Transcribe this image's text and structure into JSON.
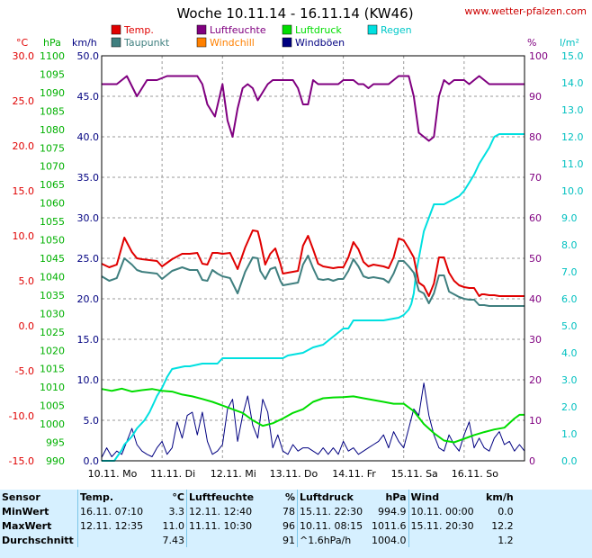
{
  "title": "Woche 10.11.14 - 16.11.14 (KW46)",
  "source": "www.wetter-pfalzen.com",
  "legend": [
    {
      "label": "Temp.",
      "color": "#e00000"
    },
    {
      "label": "Taupunkt",
      "color": "#3f7f7f"
    },
    {
      "label": "Luftfeuchte",
      "color": "#800080"
    },
    {
      "label": "Windchill",
      "color": "#ff8000"
    },
    {
      "label": "Luftdruck",
      "color": "#00dd00"
    },
    {
      "label": "Windböen",
      "color": "#000080"
    },
    {
      "label": "Regen",
      "color": "#00e0e0"
    }
  ],
  "axes": {
    "temp": {
      "unit": "°C",
      "ticks": [
        "30.0",
        "25.0",
        "20.0",
        "15.0",
        "10.0",
        "5.0",
        "0.0",
        "-5.0",
        "-10.0",
        "-15.0"
      ],
      "color": "#e00000"
    },
    "pressure": {
      "unit": "hPa",
      "ticks": [
        "1100",
        "1095",
        "1090",
        "1085",
        "1080",
        "1075",
        "1070",
        "1065",
        "1060",
        "1055",
        "1050",
        "1045",
        "1040",
        "1035",
        "1030",
        "1025",
        "1020",
        "1015",
        "1010",
        "1005",
        "1000",
        "995",
        "990"
      ],
      "color": "#00b000"
    },
    "wind": {
      "unit": "km/h",
      "ticks": [
        "50.0",
        "45.0",
        "40.0",
        "35.0",
        "30.0",
        "25.0",
        "20.0",
        "15.0",
        "10.0",
        "5.0",
        "0.0"
      ],
      "color": "#000080"
    },
    "humidity": {
      "unit": "%",
      "ticks": [
        "100",
        "90",
        "80",
        "70",
        "60",
        "50",
        "40",
        "30",
        "20",
        "10",
        "0"
      ],
      "color": "#800080"
    },
    "rain": {
      "unit": "l/m²",
      "ticks": [
        "15.0",
        "14.0",
        "13.0",
        "12.0",
        "11.0",
        "10.0",
        "9.0",
        "8.0",
        "7.0",
        "6.0",
        "5.0",
        "4.0",
        "3.0",
        "2.0",
        "1.0",
        "0.0"
      ],
      "color": "#00c0c0"
    },
    "days": [
      "10.11. Mo",
      "11.11. Di",
      "12.11. Mi",
      "13.11. Do",
      "14.11. Fr",
      "15.11. Sa",
      "16.11. So"
    ]
  },
  "chart_data": {
    "type": "line",
    "title": "Woche 10.11.14 - 16.11.14 (KW46)",
    "x_unit": "hours since 10.11. 00:00",
    "xlim": [
      0,
      168
    ],
    "series": [
      {
        "name": "Temp.",
        "axis": "temp",
        "ylim": [
          -15,
          30
        ],
        "color": "#e00000",
        "x": [
          0,
          3,
          6,
          9,
          12,
          14,
          16,
          19,
          22,
          24,
          28,
          32,
          35,
          38,
          40,
          42,
          44,
          46,
          48,
          51,
          54,
          57,
          60,
          62,
          63,
          65,
          67,
          69,
          71,
          72,
          74,
          76,
          78,
          80,
          82,
          84,
          86,
          88,
          90,
          92,
          94,
          96,
          98,
          100,
          102,
          104,
          106,
          108,
          110,
          112,
          114,
          116,
          118,
          120,
          122,
          124,
          126,
          128,
          130,
          132,
          134,
          136,
          138,
          140,
          142,
          144,
          146,
          148,
          150,
          151,
          152,
          154,
          156,
          158,
          160,
          162,
          164,
          166,
          168
        ],
        "y": [
          6.9,
          6.5,
          6.8,
          9.8,
          8.2,
          7.5,
          7.4,
          7.3,
          7.2,
          6.6,
          7.4,
          8.0,
          8.0,
          8.1,
          6.9,
          6.8,
          8.1,
          8.1,
          8.0,
          8.1,
          6.3,
          8.7,
          10.6,
          10.5,
          9.4,
          6.8,
          8.0,
          8.6,
          6.9,
          5.8,
          5.9,
          6.0,
          6.1,
          8.9,
          10.0,
          8.5,
          6.9,
          6.6,
          6.5,
          6.4,
          6.5,
          6.5,
          7.6,
          9.3,
          8.5,
          7.1,
          6.6,
          6.8,
          6.7,
          6.6,
          6.4,
          7.6,
          9.7,
          9.5,
          8.6,
          7.6,
          4.8,
          4.4,
          3.3,
          4.7,
          7.6,
          7.6,
          5.9,
          5.0,
          4.5,
          4.3,
          4.2,
          4.2,
          3.3,
          3.5,
          3.5,
          3.4,
          3.4,
          3.3,
          3.3,
          3.3,
          3.3,
          3.3,
          3.3
        ]
      },
      {
        "name": "Taupunkt",
        "axis": "temp",
        "ylim": [
          -15,
          30
        ],
        "color": "#3f7f7f",
        "x": [
          0,
          3,
          6,
          9,
          12,
          14,
          16,
          19,
          22,
          24,
          28,
          32,
          35,
          38,
          40,
          42,
          44,
          46,
          48,
          51,
          54,
          57,
          60,
          62,
          63,
          65,
          67,
          69,
          71,
          72,
          74,
          76,
          78,
          80,
          82,
          84,
          86,
          88,
          90,
          92,
          94,
          96,
          98,
          100,
          102,
          104,
          106,
          108,
          110,
          112,
          114,
          116,
          118,
          120,
          122,
          124,
          126,
          128,
          130,
          132,
          134,
          136,
          138,
          140,
          142,
          144,
          146,
          148,
          150,
          151,
          152,
          154,
          156,
          158,
          160,
          162,
          164,
          166,
          168
        ],
        "y": [
          5.5,
          5.0,
          5.3,
          7.5,
          6.8,
          6.2,
          6.0,
          5.9,
          5.8,
          5.2,
          6.1,
          6.5,
          6.2,
          6.2,
          5.1,
          5.0,
          6.2,
          5.8,
          5.5,
          5.3,
          3.6,
          6.0,
          7.6,
          7.5,
          6.1,
          5.2,
          6.3,
          6.5,
          5.0,
          4.5,
          4.6,
          4.7,
          4.8,
          6.8,
          7.8,
          6.4,
          5.2,
          5.1,
          5.2,
          5.0,
          5.2,
          5.2,
          6.1,
          7.4,
          6.6,
          5.5,
          5.3,
          5.4,
          5.3,
          5.2,
          4.8,
          5.8,
          7.2,
          7.2,
          6.6,
          5.9,
          3.9,
          3.6,
          2.5,
          3.6,
          5.6,
          5.6,
          3.8,
          3.5,
          3.2,
          3.0,
          2.9,
          2.9,
          2.3,
          2.3,
          2.3,
          2.2,
          2.2,
          2.2,
          2.2,
          2.2,
          2.2,
          2.2,
          2.2
        ]
      },
      {
        "name": "Luftfeuchte",
        "axis": "humidity",
        "ylim": [
          0,
          100
        ],
        "color": "#800080",
        "x": [
          0,
          6,
          10,
          14,
          18,
          22,
          26,
          30,
          34,
          38,
          40,
          42,
          45,
          48,
          50,
          52,
          54,
          56,
          58,
          60,
          62,
          64,
          66,
          68,
          70,
          72,
          74,
          76,
          78,
          80,
          82,
          84,
          86,
          88,
          90,
          92,
          94,
          96,
          98,
          100,
          102,
          104,
          106,
          108,
          110,
          112,
          114,
          116,
          118,
          120,
          122,
          124,
          126,
          128,
          130,
          132,
          134,
          136,
          138,
          140,
          142,
          144,
          146,
          148,
          150,
          152,
          154,
          156,
          158,
          160,
          162,
          164,
          166,
          168
        ],
        "y": [
          93,
          93,
          95,
          90,
          94,
          94,
          95,
          95,
          95,
          95,
          93,
          88,
          85,
          93,
          84,
          80,
          87,
          92,
          93,
          92,
          89,
          91,
          93,
          94,
          94,
          94,
          94,
          94,
          92,
          88,
          88,
          94,
          93,
          93,
          93,
          93,
          93,
          94,
          94,
          94,
          93,
          93,
          92,
          93,
          93,
          93,
          93,
          94,
          95,
          95,
          95,
          90,
          81,
          80,
          79,
          80,
          90,
          94,
          93,
          94,
          94,
          94,
          93,
          94,
          95,
          94,
          93,
          93,
          93,
          93,
          93,
          93,
          93,
          93
        ]
      },
      {
        "name": "Luftdruck",
        "axis": "pressure",
        "ylim": [
          990,
          1100
        ],
        "color": "#00dd00",
        "x": [
          0,
          4,
          8,
          12,
          16,
          20,
          24,
          28,
          32,
          36,
          40,
          44,
          48,
          52,
          56,
          60,
          64,
          68,
          72,
          76,
          80,
          84,
          88,
          92,
          96,
          100,
          104,
          108,
          112,
          116,
          120,
          124,
          128,
          132,
          136,
          140,
          144,
          148,
          152,
          156,
          160,
          164,
          166,
          168
        ],
        "y": [
          1009.5,
          1009.0,
          1009.6,
          1008.8,
          1009.2,
          1009.5,
          1009.0,
          1008.8,
          1008.0,
          1007.5,
          1006.8,
          1006.0,
          1005.0,
          1004.0,
          1003.0,
          1001.0,
          999.5,
          1000.2,
          1001.5,
          1003.0,
          1004.0,
          1006.0,
          1007.0,
          1007.2,
          1007.3,
          1007.5,
          1007.0,
          1006.5,
          1006.0,
          1005.5,
          1005.5,
          1003.5,
          1000.0,
          997.5,
          995.5,
          995.0,
          996.0,
          997.0,
          997.8,
          998.5,
          999.0,
          1001.5,
          1002.5,
          1002.5
        ]
      },
      {
        "name": "Regen",
        "axis": "rain",
        "ylim": [
          0,
          15
        ],
        "color": "#00e0e0",
        "x": [
          0,
          5,
          8,
          9,
          12,
          14,
          17,
          19,
          21,
          22,
          24,
          26,
          28,
          33,
          35,
          40,
          46,
          48,
          50,
          72,
          74,
          80,
          82,
          84,
          88,
          92,
          96,
          98,
          100,
          102,
          108,
          112,
          118,
          120,
          122,
          123,
          124,
          125,
          126,
          128,
          130,
          132,
          134,
          136,
          138,
          140,
          142,
          144,
          146,
          148,
          150,
          152,
          154,
          156,
          158,
          160,
          162,
          164,
          166,
          168
        ],
        "y": [
          0,
          0,
          0.4,
          0.6,
          0.9,
          1.2,
          1.5,
          1.8,
          2.2,
          2.4,
          2.7,
          3.1,
          3.4,
          3.5,
          3.5,
          3.6,
          3.6,
          3.8,
          3.8,
          3.8,
          3.9,
          4.0,
          4.1,
          4.2,
          4.3,
          4.6,
          4.9,
          4.9,
          5.2,
          5.2,
          5.2,
          5.2,
          5.3,
          5.4,
          5.6,
          5.8,
          6.2,
          7.0,
          7.5,
          8.5,
          9.0,
          9.5,
          9.5,
          9.5,
          9.6,
          9.7,
          9.8,
          10.0,
          10.3,
          10.6,
          11.0,
          11.3,
          11.6,
          12.0,
          12.1,
          12.1,
          12.1,
          12.1,
          12.1,
          12.1
        ]
      },
      {
        "name": "Windböen",
        "axis": "wind",
        "ylim": [
          0,
          50
        ],
        "color": "#000080",
        "x": [
          0,
          2,
          4,
          6,
          8,
          10,
          12,
          14,
          16,
          18,
          20,
          22,
          24,
          26,
          28,
          30,
          32,
          34,
          36,
          38,
          40,
          42,
          44,
          46,
          48,
          50,
          52,
          54,
          56,
          58,
          60,
          62,
          64,
          66,
          68,
          70,
          72,
          74,
          76,
          78,
          80,
          82,
          84,
          86,
          88,
          90,
          92,
          94,
          96,
          98,
          100,
          102,
          104,
          106,
          108,
          110,
          112,
          114,
          116,
          118,
          120,
          122,
          124,
          126,
          128,
          130,
          132,
          134,
          136,
          138,
          140,
          142,
          144,
          146,
          148,
          150,
          152,
          154,
          156,
          158,
          160,
          162,
          164,
          166,
          168
        ],
        "y": [
          0.4,
          1.6,
          0.5,
          1.2,
          0.8,
          2.4,
          4.0,
          2.0,
          1.2,
          0.8,
          0.5,
          1.6,
          2.4,
          0.8,
          1.6,
          4.8,
          2.8,
          5.6,
          6.0,
          3.2,
          6.0,
          2.4,
          0.8,
          1.2,
          2.0,
          6.4,
          7.6,
          2.4,
          5.6,
          8.0,
          4.4,
          2.8,
          7.6,
          6.0,
          1.6,
          3.2,
          1.2,
          0.8,
          2.0,
          1.2,
          1.6,
          1.6,
          1.2,
          0.8,
          1.6,
          0.8,
          1.6,
          0.8,
          2.4,
          1.2,
          1.6,
          0.8,
          1.2,
          1.6,
          2.0,
          2.4,
          3.2,
          1.6,
          3.6,
          2.4,
          1.6,
          4.0,
          6.4,
          5.6,
          9.6,
          5.6,
          3.2,
          1.6,
          1.2,
          3.2,
          2.0,
          1.2,
          3.2,
          4.8,
          1.6,
          2.8,
          1.6,
          1.2,
          2.8,
          3.6,
          2.0,
          2.4,
          1.2,
          2.0,
          1.2
        ]
      }
    ]
  },
  "stats": {
    "headers": [
      "Sensor",
      "Temp.",
      "°C",
      "Luftfeuchte",
      "%",
      "Luftdruck",
      "hPa",
      "Wind",
      "km/h"
    ],
    "rows": [
      {
        "label": "MinWert",
        "temp_time": "16.11.  07:10",
        "temp_val": "3.3",
        "hum_time": "12.11.  12:40",
        "hum_val": "78",
        "pres_time": "15.11.  22:30",
        "pres_val": "994.9",
        "wind_time": "10.11.  00:00",
        "wind_val": "0.0"
      },
      {
        "label": "MaxWert",
        "temp_time": "12.11.  12:35",
        "temp_val": "11.0",
        "hum_time": "11.11.  10:30",
        "hum_val": "96",
        "pres_time": "10.11.  08:15",
        "pres_val": "1011.6",
        "wind_time": "15.11.  20:30",
        "wind_val": "12.2"
      },
      {
        "label": "Durchschnitt",
        "temp_time": "",
        "temp_val": "7.43",
        "hum_time": "",
        "hum_val": "91",
        "pres_time": "^1.6hPa/h",
        "pres_val": "1004.0",
        "wind_time": "",
        "wind_val": "1.2"
      }
    ]
  }
}
